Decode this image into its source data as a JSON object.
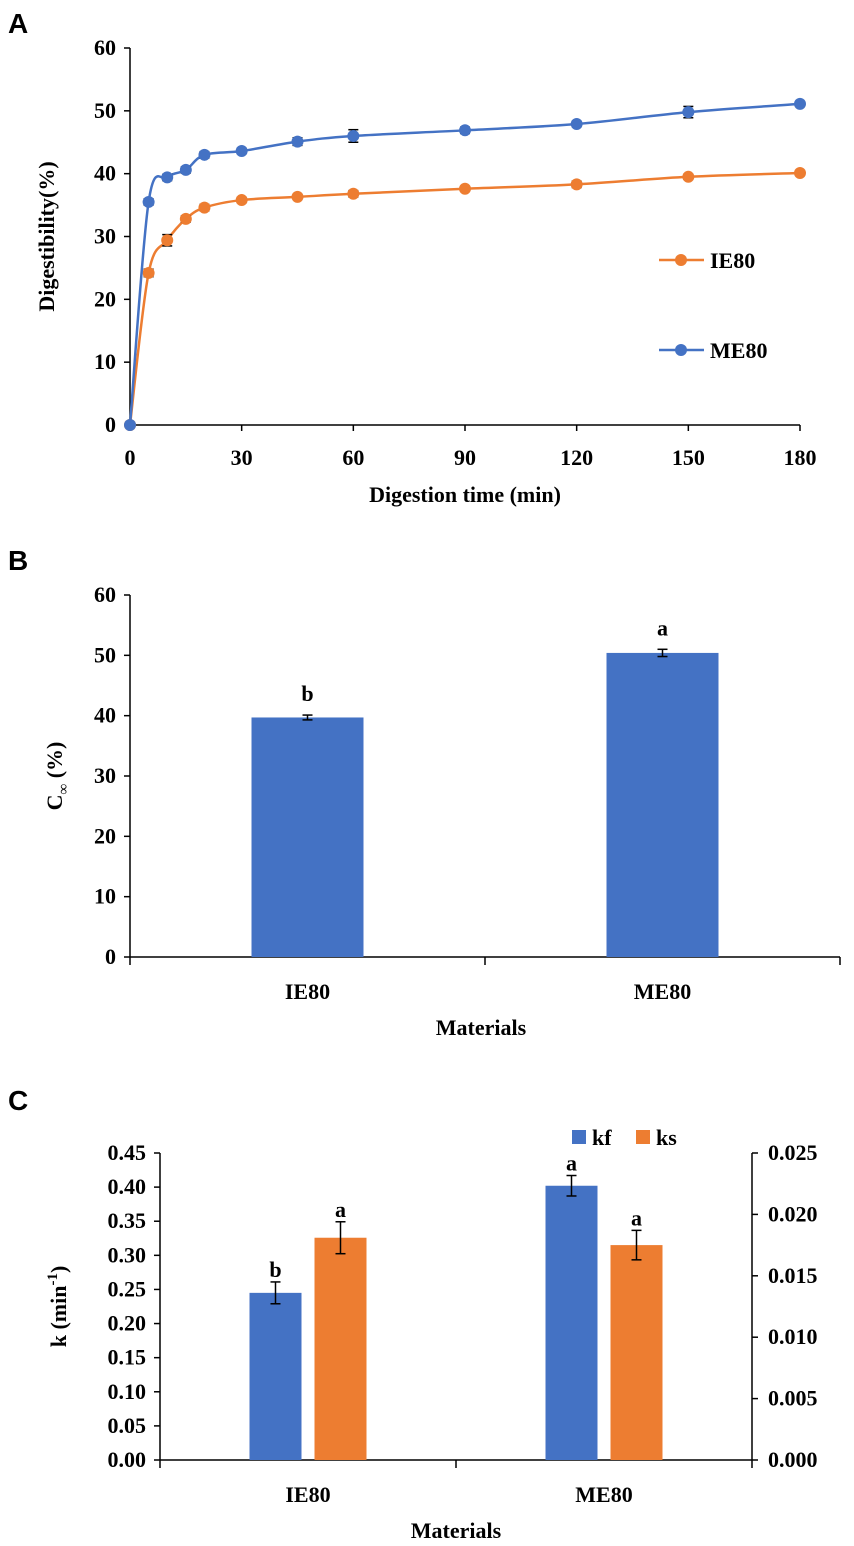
{
  "chart_data": [
    {
      "panel": "A",
      "type": "line",
      "xlabel": "Digestion time (min)",
      "ylabel": "Digestibility(%)",
      "xlim": [
        0,
        180
      ],
      "ylim": [
        0,
        60
      ],
      "xticks": [
        "0",
        "30",
        "60",
        "90",
        "120",
        "150",
        "180"
      ],
      "yticks": [
        "0",
        "10",
        "20",
        "30",
        "40",
        "50",
        "60"
      ],
      "legend_position": "right",
      "series": [
        {
          "name": "IE80",
          "color": "#ED7D31",
          "x": [
            0,
            5,
            10,
            15,
            20,
            30,
            45,
            60,
            90,
            120,
            150,
            180
          ],
          "y": [
            0,
            24.2,
            29.4,
            32.8,
            34.6,
            35.8,
            36.3,
            36.8,
            37.6,
            38.3,
            39.5,
            40.1
          ],
          "err": [
            0,
            0.6,
            0.9,
            0.5,
            0.5,
            0.4,
            0.4,
            0.5,
            0.4,
            0.5,
            0.4,
            0.4
          ]
        },
        {
          "name": "ME80",
          "color": "#4472C4",
          "x": [
            0,
            5,
            10,
            15,
            20,
            30,
            45,
            60,
            90,
            120,
            150,
            180
          ],
          "y": [
            0,
            35.5,
            39.4,
            40.6,
            43.0,
            43.6,
            45.1,
            46.0,
            46.9,
            47.9,
            49.8,
            51.1
          ],
          "err": [
            0,
            0.5,
            0.5,
            0.5,
            0.5,
            0.4,
            0.6,
            1.0,
            0.5,
            0.4,
            0.9,
            0.4
          ]
        }
      ]
    },
    {
      "panel": "B",
      "type": "bar",
      "xlabel": "Materials",
      "ylabel_main": "C",
      "ylabel_sub": "∞",
      "ylabel_tail": " (%)",
      "ylim": [
        0,
        60
      ],
      "yticks": [
        "0",
        "10",
        "20",
        "30",
        "40",
        "50",
        "60"
      ],
      "categories": [
        "IE80",
        "ME80"
      ],
      "values": [
        39.7,
        50.4
      ],
      "err": [
        0.4,
        0.6
      ],
      "letters": [
        "b",
        "a"
      ],
      "color": "#4472C4"
    },
    {
      "panel": "C",
      "type": "bar",
      "xlabel": "Materials",
      "ylabel_main": "k (min",
      "ylabel_sup": "-1",
      "ylabel_tail": ")",
      "ylim_left": [
        0,
        0.45
      ],
      "ylim_right": [
        0,
        0.025
      ],
      "yticks_left": [
        "0.00",
        "0.05",
        "0.10",
        "0.15",
        "0.20",
        "0.25",
        "0.30",
        "0.35",
        "0.40",
        "0.45"
      ],
      "yticks_right": [
        "0.000",
        "0.005",
        "0.010",
        "0.015",
        "0.020",
        "0.025"
      ],
      "categories": [
        "IE80",
        "ME80"
      ],
      "legend_position": "top",
      "series": [
        {
          "name": "kf",
          "axis": "left",
          "color": "#4472C4",
          "values": [
            0.245,
            0.402
          ],
          "err": [
            0.016,
            0.015
          ],
          "letters": [
            "b",
            "a"
          ]
        },
        {
          "name": "ks",
          "axis": "right",
          "color": "#ED7D31",
          "values": [
            0.0181,
            0.0175
          ],
          "err": [
            0.0013,
            0.0012
          ],
          "letters": [
            "a",
            "a"
          ]
        }
      ]
    }
  ]
}
